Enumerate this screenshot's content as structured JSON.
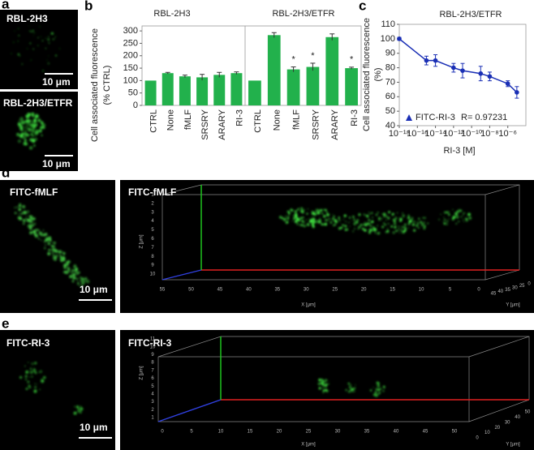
{
  "panel_labels": [
    "a",
    "b",
    "c",
    "d",
    "e"
  ],
  "images": {
    "a_top": {
      "label": "RBL-2H3",
      "scale": "10 μm"
    },
    "a_bottom": {
      "label": "RBL-2H3/ETFR",
      "scale": "10 μm"
    },
    "d_micrograph": {
      "label": "FITC-fMLF",
      "scale": "10 μm"
    },
    "d_3d": {
      "label": "FITC-fMLF",
      "x_label": "X [μm]",
      "y_label": "Y [μm]",
      "z_label": "Z [μm]",
      "x_ticks": [
        55,
        50,
        45,
        40,
        35,
        30,
        25,
        20,
        15,
        10,
        5,
        0
      ],
      "y_ticks": [
        45,
        40,
        35,
        30,
        25,
        0
      ],
      "z_ticks": [
        1,
        2,
        3,
        4,
        5,
        6,
        7,
        8,
        9,
        10
      ]
    },
    "e_micrograph": {
      "label": "FITC-RI-3",
      "scale": "10 μm"
    },
    "e_3d": {
      "label": "FITC-RI-3",
      "x_label": "X [μm]",
      "y_label": "Y [μm]",
      "z_label": "Z [μm]",
      "x_ticks": [
        0,
        5,
        10,
        15,
        20,
        25,
        30,
        35,
        40,
        45,
        50
      ],
      "y_ticks": [
        0,
        10,
        20,
        30,
        40,
        50
      ],
      "z_ticks": [
        11,
        10,
        9,
        8,
        7,
        6,
        5,
        4,
        3,
        2,
        1
      ]
    }
  },
  "chart_data": [
    {
      "type": "bar",
      "title": "RBL-2H3",
      "y_label": [
        "Cell associated fluorescence",
        "(% CTRL)"
      ],
      "categories": [
        "CTRL",
        "None",
        "fMLF",
        "SRSRY",
        "ARARY",
        "RI-3"
      ],
      "values": [
        100,
        130,
        117,
        113,
        123,
        130
      ],
      "errors": [
        0,
        3,
        5,
        12,
        10,
        5
      ],
      "color": "#22b14c",
      "ylim": [
        0,
        320
      ],
      "yticks": [
        0,
        50,
        100,
        150,
        200,
        250,
        300
      ]
    },
    {
      "type": "bar",
      "title": "RBL-2H3/ETFR",
      "categories": [
        "CTRL",
        "None",
        "fMLF",
        "SRSRY",
        "ARARY",
        "RI-3"
      ],
      "values": [
        100,
        283,
        145,
        155,
        275,
        150
      ],
      "errors": [
        0,
        10,
        10,
        15,
        13,
        4
      ],
      "annotations": [
        {
          "category": "fMLF",
          "text": "*"
        },
        {
          "category": "SRSRY",
          "text": "*"
        },
        {
          "category": "RI-3",
          "text": "*"
        }
      ],
      "color": "#22b14c",
      "ylim": [
        0,
        320
      ]
    },
    {
      "type": "line",
      "title": "RBL-2H3/ETFR",
      "x_label": "RI-3 [M]",
      "y_label": [
        "Cell associated fluorescence",
        "(%)"
      ],
      "x": [
        1e-18,
        1e-15,
        1e-14,
        1e-12,
        1e-11,
        1e-09,
        1e-08,
        1e-06,
        1e-05
      ],
      "series": [
        {
          "name": "FITC-RI-3",
          "color": "#1a2fb5",
          "values": [
            100,
            85,
            85,
            80,
            78,
            76,
            74,
            69,
            63
          ],
          "errors": [
            1,
            3,
            4,
            3,
            5,
            5,
            3,
            2,
            4
          ]
        }
      ],
      "annotation": "R= 0.97231",
      "xscale": "log",
      "xlim": [
        1e-18,
        0.0001
      ],
      "xticks": [
        {
          "value": 1e-18,
          "label": "10⁻¹⁸"
        },
        {
          "value": 1e-16,
          "label": "10⁻¹⁶"
        },
        {
          "value": 1e-14,
          "label": "10⁻¹⁴"
        },
        {
          "value": 1e-12,
          "label": "10⁻¹²"
        },
        {
          "value": 1e-10,
          "label": "10⁻¹⁰"
        },
        {
          "value": 1e-08,
          "label": "10⁻⁸"
        },
        {
          "value": 1e-06,
          "label": "10⁻⁶"
        }
      ],
      "ylim": [
        40,
        110
      ],
      "yticks": [
        40,
        50,
        60,
        70,
        80,
        90,
        100,
        110
      ],
      "legend": "lower left"
    }
  ]
}
